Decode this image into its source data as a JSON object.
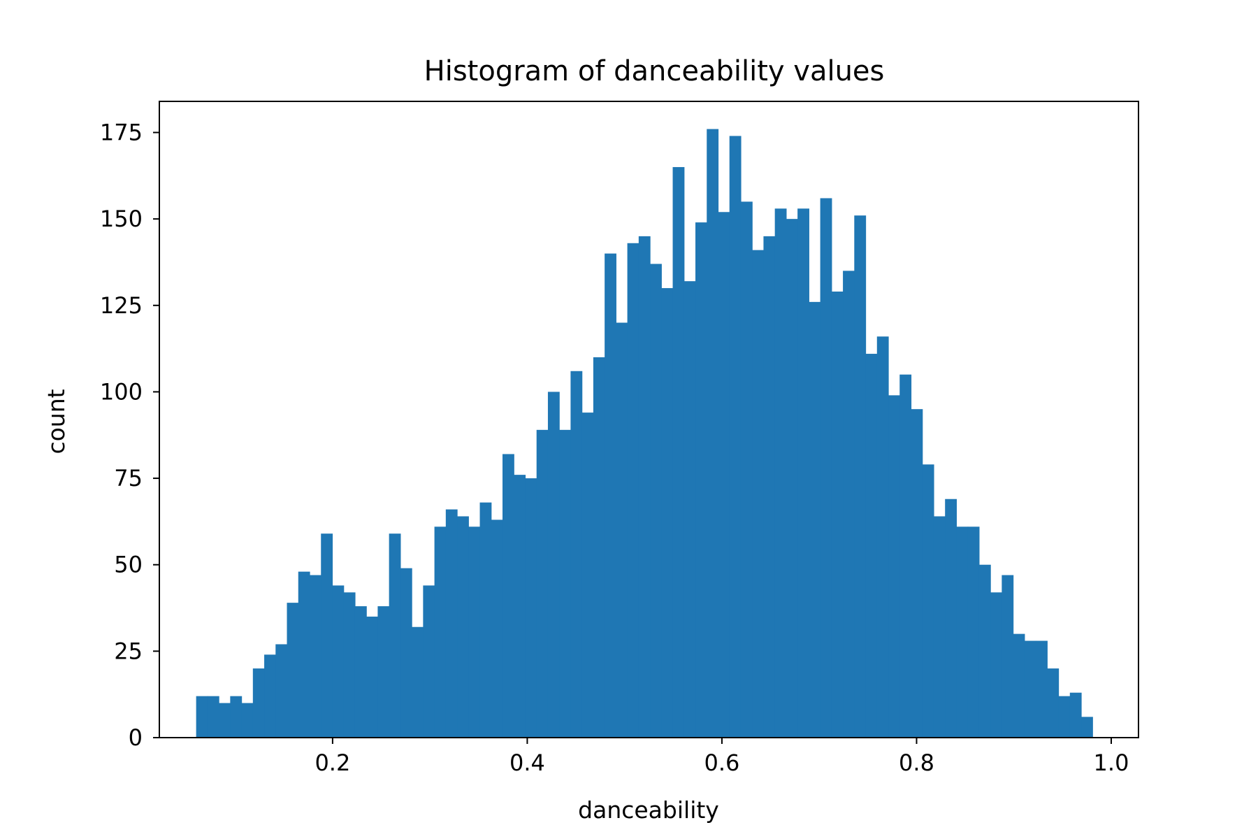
{
  "chart_data": {
    "type": "bar",
    "title": "Histogram of danceability values",
    "xlabel": "danceability",
    "ylabel": "count",
    "xlim": [
      0.022,
      1.028
    ],
    "ylim": [
      0,
      184
    ],
    "xticks": [
      {
        "value": 0.2,
        "label": "0.2"
      },
      {
        "value": 0.4,
        "label": "0.4"
      },
      {
        "value": 0.6,
        "label": "0.6"
      },
      {
        "value": 0.8,
        "label": "0.8"
      },
      {
        "value": 1.0,
        "label": "1.0"
      }
    ],
    "yticks": [
      {
        "value": 0,
        "label": "0"
      },
      {
        "value": 25,
        "label": "25"
      },
      {
        "value": 50,
        "label": "50"
      },
      {
        "value": 75,
        "label": "75"
      },
      {
        "value": 100,
        "label": "100"
      },
      {
        "value": 125,
        "label": "125"
      },
      {
        "value": 150,
        "label": "150"
      },
      {
        "value": 175,
        "label": "175"
      }
    ],
    "bin_range": [
      0.0598,
      0.9808
    ],
    "counts": [
      12,
      12,
      10,
      12,
      10,
      20,
      24,
      27,
      39,
      48,
      47,
      59,
      44,
      42,
      38,
      35,
      38,
      59,
      49,
      32,
      44,
      61,
      66,
      64,
      61,
      68,
      63,
      82,
      76,
      75,
      89,
      100,
      89,
      106,
      94,
      110,
      140,
      120,
      143,
      145,
      137,
      130,
      165,
      132,
      149,
      176,
      152,
      174,
      155,
      141,
      145,
      153,
      150,
      153,
      126,
      156,
      129,
      135,
      151,
      111,
      116,
      99,
      105,
      95,
      79,
      64,
      69,
      61,
      61,
      50,
      42,
      47,
      30,
      28,
      28,
      20,
      12,
      13,
      6
    ],
    "bar_color": "#1f77b4",
    "grid": false,
    "legend": "none"
  }
}
